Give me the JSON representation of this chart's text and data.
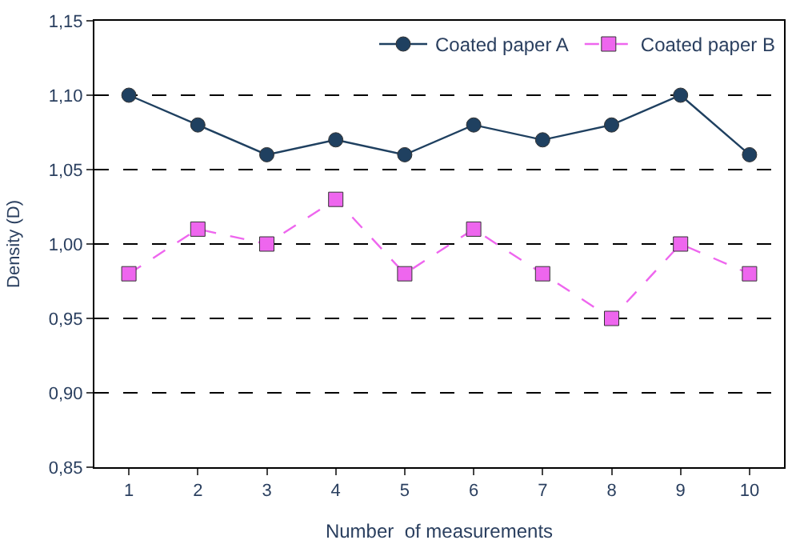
{
  "chart_data": {
    "type": "line",
    "xlabel": "Number  of measurements",
    "ylabel": "Density (D)",
    "categories": [
      "1",
      "2",
      "3",
      "4",
      "5",
      "6",
      "7",
      "8",
      "9",
      "10"
    ],
    "series": [
      {
        "name": "Coated paper A",
        "color": "#1f4060",
        "marker": "circle",
        "line_style": "solid",
        "values": [
          1.1,
          1.08,
          1.06,
          1.07,
          1.06,
          1.08,
          1.07,
          1.08,
          1.1,
          1.06
        ]
      },
      {
        "name": "Coated paper B",
        "color": "#ee66ee",
        "marker": "square",
        "line_style": "dashed",
        "values": [
          0.98,
          1.01,
          1.0,
          1.03,
          0.98,
          1.01,
          0.98,
          0.95,
          1.0,
          0.98
        ]
      }
    ],
    "ylim": [
      0.85,
      1.15
    ],
    "yticks": [
      {
        "value": 0.85,
        "label": "0,85"
      },
      {
        "value": 0.9,
        "label": "0,90"
      },
      {
        "value": 0.95,
        "label": "0,95"
      },
      {
        "value": 1.0,
        "label": "1,00"
      },
      {
        "value": 1.05,
        "label": "1,05"
      },
      {
        "value": 1.1,
        "label": "1,10"
      },
      {
        "value": 1.15,
        "label": "1,15"
      }
    ],
    "grid": "y",
    "legend": "top right"
  }
}
